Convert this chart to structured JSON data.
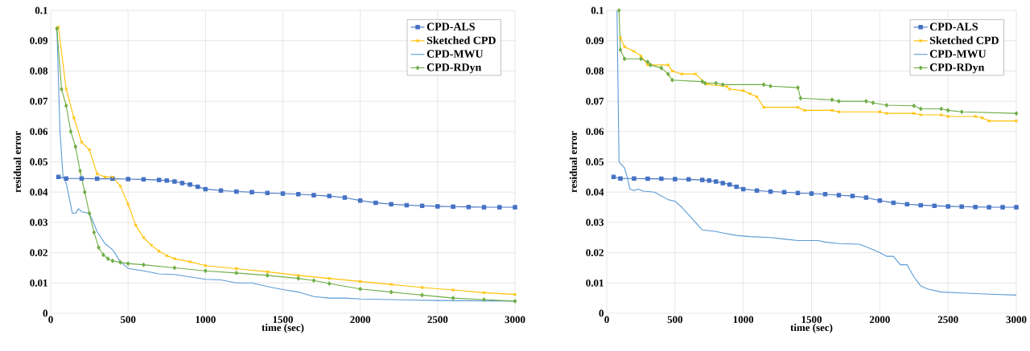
{
  "chart_data": [
    {
      "type": "line",
      "xlabel": "time (sec)",
      "ylabel": "residual error",
      "xlim": [
        0,
        3000
      ],
      "ylim": [
        0,
        0.1
      ],
      "xticks": [
        0,
        500,
        1000,
        1500,
        2000,
        2500,
        3000
      ],
      "yticks": [
        0,
        0.01,
        0.02,
        0.03,
        0.04,
        0.05,
        0.06,
        0.07,
        0.08,
        0.09,
        0.1
      ],
      "grid": true,
      "legend": "top right",
      "line_style": "solid",
      "series": [
        {
          "name": "CPD-ALS",
          "color": "#4472c4",
          "marker": "square",
          "x": [
            50,
            100,
            200,
            300,
            400,
            500,
            600,
            700,
            750,
            800,
            850,
            900,
            950,
            1000,
            1100,
            1200,
            1300,
            1400,
            1500,
            1600,
            1700,
            1800,
            1900,
            2000,
            2100,
            2200,
            2300,
            2400,
            2500,
            2600,
            2700,
            2800,
            2900,
            3000
          ],
          "values": [
            0.045,
            0.0445,
            0.0445,
            0.0444,
            0.0444,
            0.0443,
            0.0442,
            0.044,
            0.0438,
            0.0435,
            0.043,
            0.0425,
            0.0418,
            0.041,
            0.0405,
            0.0402,
            0.04,
            0.0397,
            0.0395,
            0.0393,
            0.039,
            0.0387,
            0.0382,
            0.0372,
            0.0365,
            0.036,
            0.0357,
            0.0355,
            0.0353,
            0.0352,
            0.0351,
            0.035,
            0.035,
            0.035
          ]
        },
        {
          "name": "Sketched CPD",
          "color": "#ffc000",
          "marker": "cross",
          "x": [
            50,
            100,
            150,
            200,
            250,
            300,
            350,
            400,
            450,
            500,
            550,
            600,
            650,
            700,
            750,
            800,
            900,
            1000,
            1200,
            1400,
            1600,
            1800,
            2000,
            2200,
            2400,
            2600,
            2800,
            3000
          ],
          "values": [
            0.0945,
            0.074,
            0.0645,
            0.0565,
            0.054,
            0.046,
            0.045,
            0.045,
            0.042,
            0.036,
            0.029,
            0.025,
            0.0225,
            0.0205,
            0.019,
            0.018,
            0.017,
            0.0157,
            0.0147,
            0.0137,
            0.0125,
            0.0115,
            0.0105,
            0.0095,
            0.0085,
            0.0077,
            0.0068,
            0.0062
          ]
        },
        {
          "name": "CPD-MWU",
          "color": "#5b9bd5",
          "marker": "none",
          "x": [
            40,
            60,
            80,
            100,
            120,
            140,
            160,
            180,
            200,
            250,
            300,
            350,
            400,
            450,
            500,
            600,
            700,
            800,
            900,
            1000,
            1100,
            1200,
            1300,
            1400,
            1500,
            1600,
            1700,
            1800,
            1900,
            2000,
            2200,
            2500,
            3000
          ],
          "values": [
            0.094,
            0.06,
            0.045,
            0.043,
            0.038,
            0.033,
            0.033,
            0.0345,
            0.0335,
            0.033,
            0.027,
            0.023,
            0.021,
            0.017,
            0.0148,
            0.014,
            0.013,
            0.0128,
            0.012,
            0.0112,
            0.011,
            0.01,
            0.01,
            0.0088,
            0.0078,
            0.007,
            0.0055,
            0.005,
            0.005,
            0.0047,
            0.0045,
            0.0042,
            0.004
          ]
        },
        {
          "name": "CPD-RDyn",
          "color": "#70ad47",
          "marker": "diamond",
          "x": [
            40,
            70,
            100,
            130,
            160,
            190,
            220,
            250,
            280,
            310,
            340,
            370,
            400,
            450,
            500,
            600,
            800,
            1000,
            1200,
            1400,
            1600,
            1700,
            1800,
            2000,
            2200,
            2400,
            2600,
            2800,
            3000
          ],
          "values": [
            0.094,
            0.074,
            0.0685,
            0.06,
            0.055,
            0.047,
            0.04,
            0.033,
            0.0267,
            0.0217,
            0.0193,
            0.018,
            0.0173,
            0.0168,
            0.0164,
            0.016,
            0.015,
            0.014,
            0.0133,
            0.0125,
            0.0115,
            0.0108,
            0.0098,
            0.008,
            0.007,
            0.006,
            0.005,
            0.0045,
            0.004
          ]
        }
      ]
    },
    {
      "type": "line",
      "xlabel": "time (sec)",
      "ylabel": "residual error",
      "xlim": [
        0,
        3000
      ],
      "ylim": [
        0,
        0.1
      ],
      "xticks": [
        0,
        500,
        1000,
        1500,
        2000,
        2500,
        3000
      ],
      "yticks": [
        0,
        0.01,
        0.02,
        0.03,
        0.04,
        0.05,
        0.06,
        0.07,
        0.08,
        0.09,
        0.1
      ],
      "grid": true,
      "legend": "top right",
      "line_style": "solid",
      "series": [
        {
          "name": "CPD-ALS",
          "color": "#4472c4",
          "marker": "square",
          "x": [
            50,
            100,
            200,
            300,
            400,
            500,
            600,
            700,
            750,
            800,
            850,
            900,
            950,
            1000,
            1100,
            1200,
            1300,
            1400,
            1500,
            1600,
            1700,
            1800,
            1900,
            2000,
            2100,
            2200,
            2300,
            2400,
            2500,
            2600,
            2700,
            2800,
            2900,
            3000
          ],
          "values": [
            0.045,
            0.0445,
            0.0445,
            0.0444,
            0.0444,
            0.0443,
            0.0442,
            0.044,
            0.0438,
            0.0435,
            0.043,
            0.0425,
            0.0418,
            0.041,
            0.0405,
            0.0402,
            0.04,
            0.0397,
            0.0395,
            0.0393,
            0.039,
            0.0387,
            0.0382,
            0.0372,
            0.0365,
            0.036,
            0.0357,
            0.0355,
            0.0353,
            0.0352,
            0.0351,
            0.035,
            0.035,
            0.035
          ]
        },
        {
          "name": "Sketched CPD",
          "color": "#ffc000",
          "marker": "cross",
          "x": [
            100,
            130,
            200,
            250,
            300,
            450,
            480,
            550,
            650,
            730,
            880,
            900,
            1000,
            1050,
            1100,
            1150,
            1400,
            1450,
            1650,
            1700,
            2000,
            2050,
            2250,
            2300,
            2450,
            2500,
            2700,
            2750,
            2800,
            3000
          ],
          "values": [
            0.091,
            0.088,
            0.0865,
            0.085,
            0.082,
            0.082,
            0.08,
            0.079,
            0.079,
            0.0757,
            0.0748,
            0.074,
            0.0735,
            0.0725,
            0.0715,
            0.068,
            0.068,
            0.067,
            0.067,
            0.0665,
            0.0665,
            0.066,
            0.066,
            0.0655,
            0.0655,
            0.065,
            0.065,
            0.0645,
            0.0635,
            0.0635
          ]
        },
        {
          "name": "CPD-MWU",
          "color": "#5b9bd5",
          "marker": "none",
          "x": [
            75,
            90,
            130,
            150,
            170,
            200,
            230,
            270,
            350,
            450,
            500,
            550,
            650,
            700,
            800,
            850,
            950,
            1050,
            1200,
            1300,
            1400,
            1550,
            1600,
            1700,
            1850,
            1950,
            2000,
            2050,
            2100,
            2150,
            2200,
            2250,
            2300,
            2350,
            2450,
            2600,
            2700,
            2800,
            3000
          ],
          "values": [
            0.1,
            0.05,
            0.048,
            0.045,
            0.041,
            0.0405,
            0.041,
            0.0403,
            0.04,
            0.0375,
            0.037,
            0.035,
            0.03,
            0.0275,
            0.027,
            0.0265,
            0.0257,
            0.0253,
            0.025,
            0.0245,
            0.024,
            0.024,
            0.0235,
            0.023,
            0.0228,
            0.021,
            0.02,
            0.0188,
            0.0188,
            0.016,
            0.016,
            0.012,
            0.009,
            0.008,
            0.007,
            0.0067,
            0.0065,
            0.0063,
            0.006
          ]
        },
        {
          "name": "CPD-RDyn",
          "color": "#70ad47",
          "marker": "diamond",
          "x": [
            90,
            100,
            130,
            250,
            300,
            320,
            400,
            450,
            480,
            700,
            720,
            800,
            850,
            1150,
            1200,
            1400,
            1420,
            1650,
            1700,
            1900,
            1950,
            2050,
            2250,
            2300,
            2450,
            2500,
            2600,
            3000
          ],
          "values": [
            0.1,
            0.087,
            0.084,
            0.084,
            0.083,
            0.082,
            0.081,
            0.079,
            0.077,
            0.0765,
            0.076,
            0.076,
            0.0755,
            0.0755,
            0.075,
            0.0745,
            0.071,
            0.0705,
            0.07,
            0.07,
            0.0695,
            0.0687,
            0.0685,
            0.0675,
            0.0675,
            0.067,
            0.0665,
            0.066
          ]
        }
      ]
    }
  ]
}
